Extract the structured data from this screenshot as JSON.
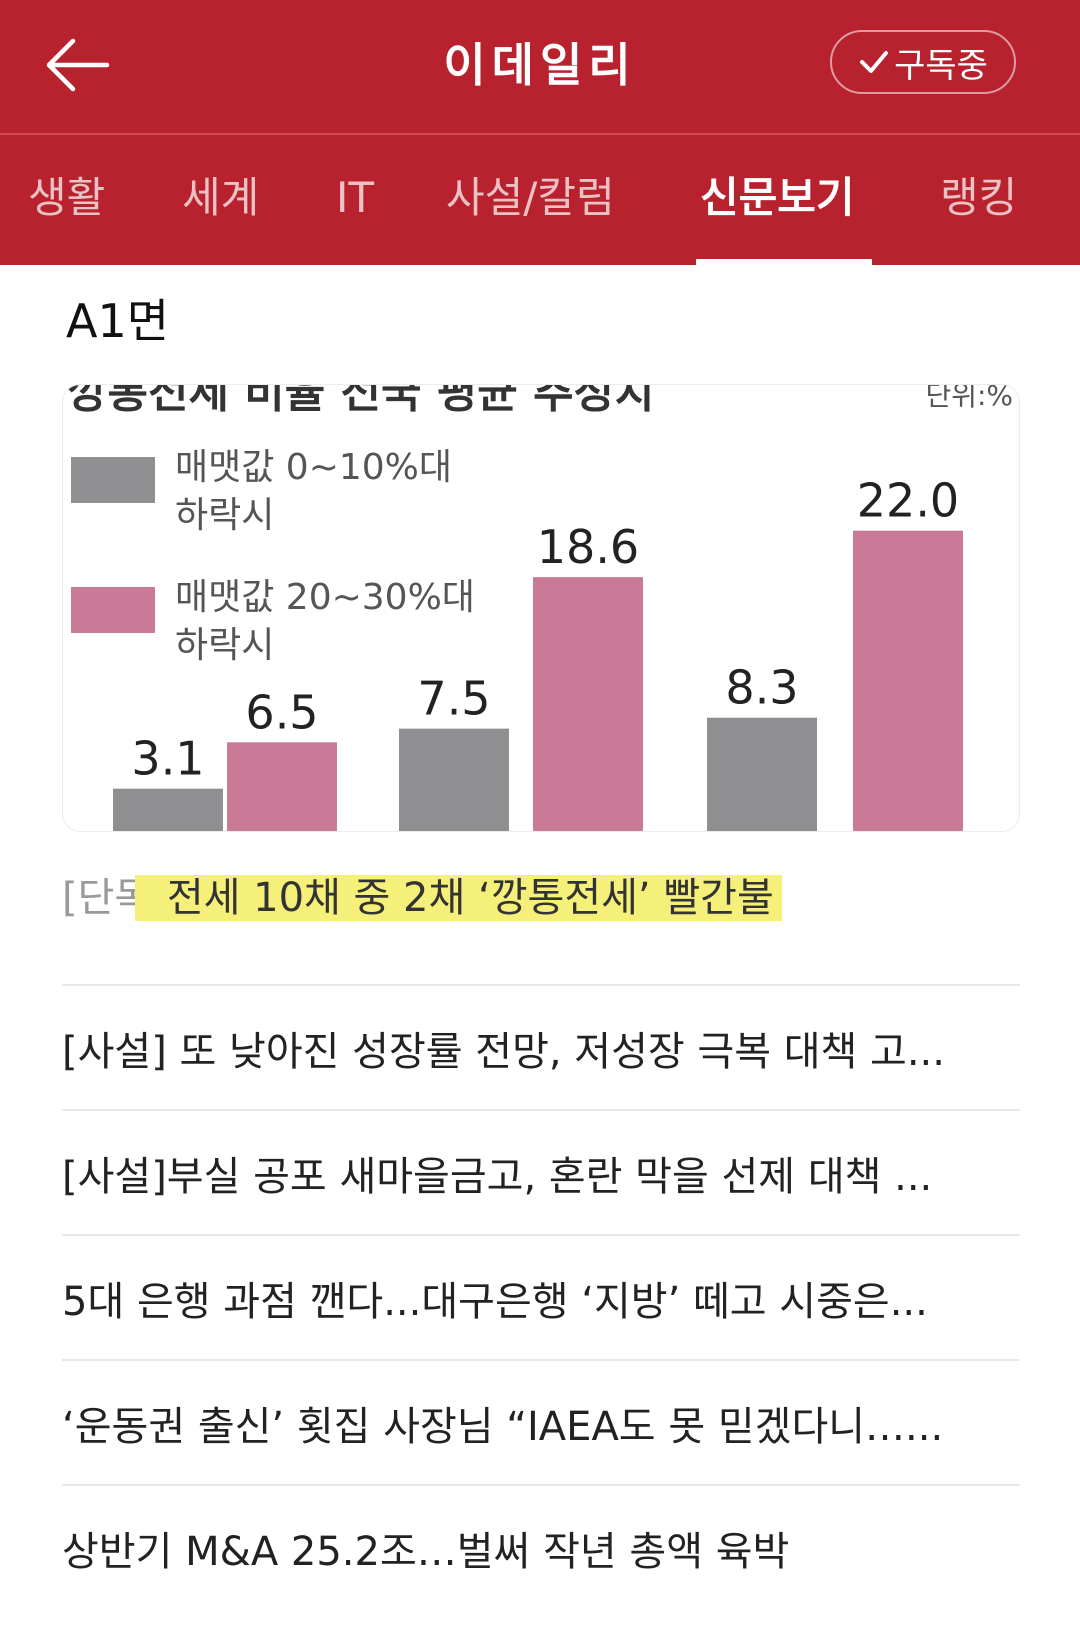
{
  "header": {
    "title": "이데일리",
    "subscribe_label": "구독중",
    "back_icon": "arrow-left-icon",
    "check_icon": "check-icon",
    "bar_color": "#b7222e"
  },
  "tabs": [
    {
      "label": "생활",
      "active": false
    },
    {
      "label": "세계",
      "active": false
    },
    {
      "label": "IT",
      "active": false
    },
    {
      "label": "사설/칼럼",
      "active": false
    },
    {
      "label": "신문보기",
      "active": true
    },
    {
      "label": "랭킹",
      "active": false
    }
  ],
  "section": {
    "title": "A1면"
  },
  "featured": {
    "tag": "[단독]",
    "headline": "전세 10채 중 2채 ‘깡통전세’ 빨간불",
    "highlight_color": "#f5f07a"
  },
  "chart_data": {
    "type": "bar",
    "title": "깡통전세 비율 전국 평균 추정치",
    "unit": "단위:%",
    "legend_placement": "top-left",
    "series": [
      {
        "name": "매맷값 0~10%대 하락시",
        "color": "#8f8f92",
        "values": [
          3.1,
          7.5,
          8.3
        ]
      },
      {
        "name": "매맷값 20~30%대 하락시",
        "color": "#c97a96",
        "values": [
          6.5,
          18.6,
          22.0
        ]
      }
    ],
    "data_labels": [
      "3.1",
      "6.5",
      "7.5",
      "18.6",
      "8.3",
      "22.0"
    ]
  },
  "articles": [
    "[사설] 또 낮아진 성장률 전망, 저성장 극복 대책 고...",
    "[사설]부실 공포 새마을금고, 혼란 막을 선제 대책 ...",
    "5대 은행 과점 깬다...대구은행 ‘지방’ 떼고 시중은...",
    "‘운동권 출신’ 횟집 사장님 “IAEA도 못 믿겠다니…...",
    "상반기 M&A 25.2조…벌써 작년 총액 육박"
  ]
}
